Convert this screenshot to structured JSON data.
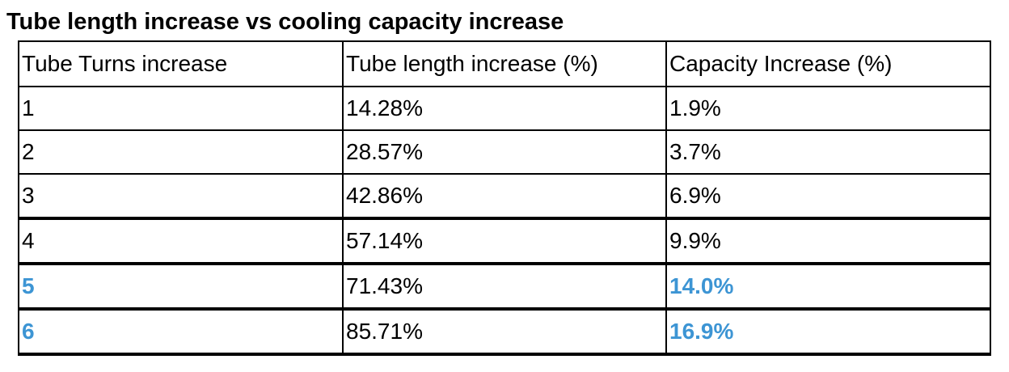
{
  "title": "Tube length increase vs cooling capacity increase",
  "table": {
    "headers": [
      "Tube Turns increase",
      "Tube length increase (%)",
      "Capacity Increase (%)"
    ],
    "rows": [
      [
        "1",
        "14.28%",
        "1.9%"
      ],
      [
        "2",
        "28.57%",
        "3.7%"
      ],
      [
        "3",
        "42.86%",
        "6.9%"
      ],
      [
        "4",
        "57.14%",
        "9.9%"
      ],
      [
        "5",
        "71.43%",
        "14.0%"
      ],
      [
        "6",
        "85.71%",
        "16.9%"
      ]
    ]
  },
  "colors": {
    "highlight": "#3d95d4",
    "border": "#000000",
    "text": "#000000"
  }
}
